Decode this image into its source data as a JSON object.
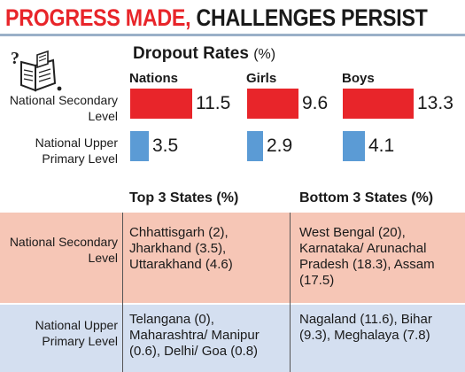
{
  "headline": {
    "part1": "PROGRESS MADE,",
    "part2": "CHALLENGES PERSIST"
  },
  "icons": {
    "book": "book-with-question-mark-icon"
  },
  "colors": {
    "accent_red": "#e8252a",
    "secondary_bar": "#e8252a",
    "primary_bar": "#5b9bd5",
    "secondary_band": "#f6c6b6",
    "primary_band": "#d4dff0"
  },
  "chart_data": {
    "type": "bar",
    "title": "Dropout Rates",
    "unit": "(%)",
    "groups": [
      "Nations",
      "Girls",
      "Boys"
    ],
    "series": [
      {
        "name": "National Secondary Level",
        "values": [
          11.5,
          9.6,
          13.3
        ],
        "labels": [
          "11.5",
          "9.6",
          "13.3"
        ]
      },
      {
        "name": "National Upper Primary Level",
        "values": [
          3.5,
          2.9,
          4.1
        ],
        "labels": [
          "3.5",
          "2.9",
          "4.1"
        ]
      }
    ]
  },
  "table": {
    "col_top": "Top 3 States (%)",
    "col_bottom": "Bottom 3 States (%)",
    "rows": [
      {
        "label": "National Secondary Level",
        "top": [
          "Chhattisgarh (2),",
          "Jharkhand (3.5),",
          "Uttarakhand (4.6)"
        ],
        "bottom": [
          "West Bengal (20),",
          "Karnataka/ Arunachal",
          "Pradesh (18.3), Assam",
          "(17.5)"
        ]
      },
      {
        "label": "National Upper Primary Level",
        "top": [
          "Telangana (0),",
          "Maharashtra/ Manipur",
          "(0.6), Delhi/ Goa (0.8)"
        ],
        "bottom": [
          "Nagaland (11.6), Bihar",
          "(9.3), Meghalaya (7.8)"
        ]
      }
    ]
  }
}
